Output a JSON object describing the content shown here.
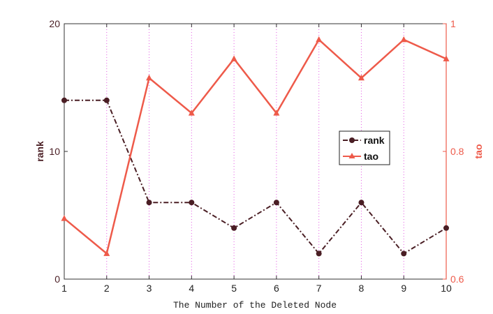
{
  "chart_data": {
    "type": "line",
    "xlabel": "The Number of the Deleted Node",
    "x": [
      1,
      2,
      3,
      4,
      5,
      6,
      7,
      8,
      9,
      10
    ],
    "xticks": [
      "1",
      "2",
      "3",
      "4",
      "5",
      "6",
      "7",
      "8",
      "9",
      "10"
    ],
    "xlim": [
      1,
      10
    ],
    "axes": {
      "left": {
        "label": "rank",
        "ylim": [
          0,
          20
        ],
        "ticks": [
          "0",
          "10",
          "20"
        ],
        "color": "#4a1e24"
      },
      "right": {
        "label": "tao",
        "ylim": [
          0.6,
          1.0
        ],
        "ticks": [
          "0.6",
          "0.8",
          "1"
        ],
        "color": "#ee5a4a"
      }
    },
    "series": [
      {
        "name": "rank",
        "axis": "left",
        "values": [
          14,
          14,
          6,
          6,
          4,
          6,
          2,
          6,
          2,
          4
        ],
        "color": "#4a1e24",
        "line_style": "dash-dot",
        "marker": "circle"
      },
      {
        "name": "tao",
        "axis": "right",
        "values": [
          0.695,
          0.64,
          0.915,
          0.86,
          0.945,
          0.86,
          0.975,
          0.915,
          0.975,
          0.945
        ],
        "color": "#ee5a4a",
        "line_style": "solid",
        "marker": "triangle"
      }
    ],
    "grid": "vertical dotted lines at each x tick",
    "grid_color": "#e35ae3",
    "legend": {
      "position": "right-center",
      "entries": [
        "rank",
        "tao"
      ]
    }
  }
}
